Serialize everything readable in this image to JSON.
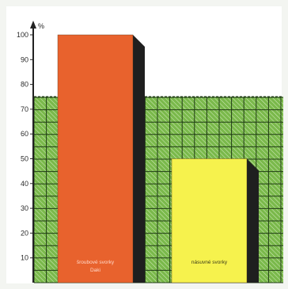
{
  "chart_data": {
    "type": "bar",
    "categories": [
      "šroubové svorky Daki",
      "násuvné svorky"
    ],
    "label_lines": [
      [
        "šroubové svorky",
        "Daki"
      ],
      [
        "násuvné svorky"
      ]
    ],
    "values": [
      100,
      50
    ],
    "y_unit": "%",
    "ylim": [
      0,
      100
    ],
    "y_ticks": [
      10,
      20,
      30,
      40,
      50,
      60,
      70,
      80,
      90,
      100
    ],
    "reference_level": 75,
    "grid": true,
    "legend": "none",
    "title": "",
    "xlabel": "",
    "ylabel": ""
  },
  "colors": {
    "background": "#f3f5f1",
    "panel": "#ffffff",
    "grid_fill": "#7ab94b",
    "grid_line": "#1f3b14",
    "hatch": "#d7ecc2",
    "axis": "#222222",
    "bar_1": "#e8622d",
    "bar_2": "#f6f24d",
    "shadow": "#1f1f1f",
    "bar_1_text": "#ffd8c9",
    "bar_2_text": "#3b3b1a"
  }
}
